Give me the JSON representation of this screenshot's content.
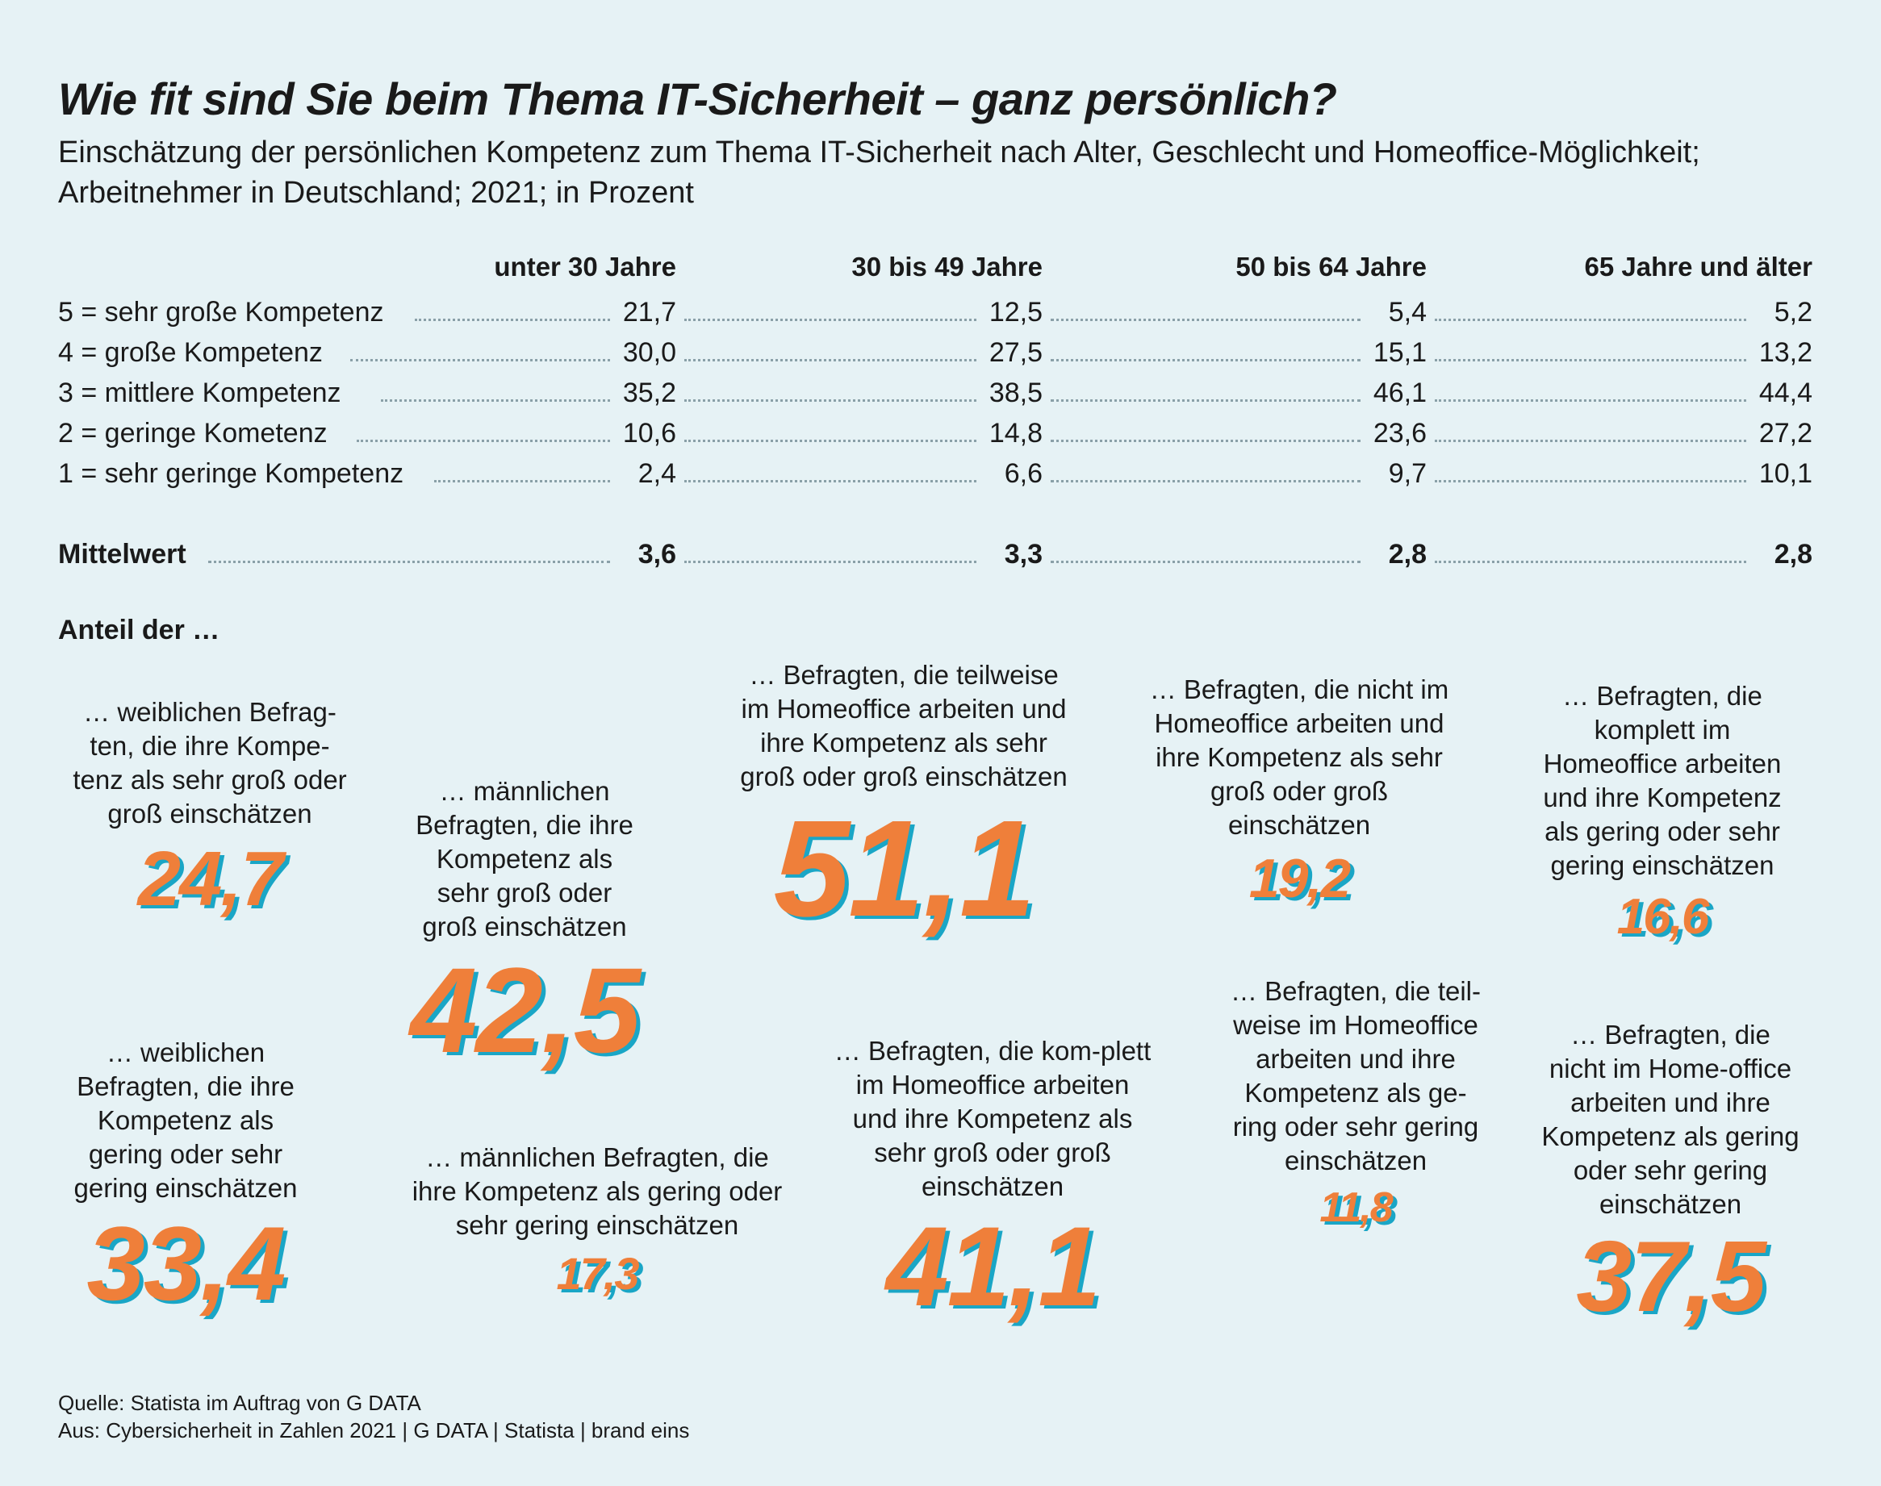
{
  "title": "Wie fit sind Sie beim Thema IT-Sicherheit – ganz persönlich?",
  "subtitle": "Einschätzung der persönlichen Kompetenz zum Thema IT-Sicherheit nach Alter, Geschlecht und Homeoffice-Möglichkeit; Arbeitnehmer in Deutschland; 2021; in Prozent",
  "chart_data": [
    {
      "type": "table",
      "columns": [
        "unter 30 Jahre",
        "30 bis 49 Jahre",
        "50 bis 64 Jahre",
        "65 Jahre und älter"
      ],
      "rows": [
        {
          "label": "5 = sehr große Kompetenz",
          "values": [
            "21,7",
            "12,5",
            "5,4",
            "5,2"
          ]
        },
        {
          "label": "4 = große Kompetenz",
          "values": [
            "30,0",
            "27,5",
            "15,1",
            "13,2"
          ]
        },
        {
          "label": "3 = mittlere Kompetenz",
          "values": [
            "35,2",
            "38,5",
            "46,1",
            "44,4"
          ]
        },
        {
          "label": "2 = geringe Kometenz",
          "values": [
            "10,6",
            "14,8",
            "23,6",
            "27,2"
          ]
        },
        {
          "label": "1 = sehr geringe Kompetenz",
          "values": [
            "2,4",
            "6,6",
            "9,7",
            "10,1"
          ]
        }
      ],
      "mean": {
        "label": "Mittelwert",
        "values": [
          "3,6",
          "3,3",
          "2,8",
          "2,8"
        ]
      }
    },
    {
      "type": "table",
      "title": "Anteil der …",
      "items": [
        {
          "desc": "… weiblichen Befrag-ten, die ihre Kompe-tenz als sehr groß oder groß einschätzen",
          "value": "24,7"
        },
        {
          "desc": "… männlichen Befragten, die ihre Kompetenz als sehr groß oder groß einschätzen",
          "value": "42,5"
        },
        {
          "desc": "… Befragten, die teilweise im Homeoffice arbeiten und ihre Kompetenz als sehr groß oder groß einschätzen",
          "value": "51,1"
        },
        {
          "desc": "… Befragten, die nicht im Homeoffice arbeiten und ihre Kompetenz als sehr groß oder groß einschätzen",
          "value": "19,2"
        },
        {
          "desc": "… Befragten, die komplett im Homeoffice arbeiten und ihre Kompetenz als gering oder sehr gering einschätzen",
          "value": "16,6"
        },
        {
          "desc": "… weiblichen Befragten, die ihre Kompetenz als gering oder sehr gering einschätzen",
          "value": "33,4"
        },
        {
          "desc": "… männlichen Befragten, die ihre Kompetenz als gering oder sehr gering einschätzen",
          "value": "17,3"
        },
        {
          "desc": "… Befragten, die kom-plett im Homeoffice arbeiten und ihre Kompetenz als sehr groß oder groß einschätzen",
          "value": "41,1"
        },
        {
          "desc": "… Befragten, die teil-weise im Homeoffice arbeiten und ihre Kompetenz als ge-ring oder sehr gering einschätzen",
          "value": "11,8"
        },
        {
          "desc": "… Befragten, die nicht im Home-office arbeiten und ihre Kompetenz als gering oder sehr gering einschätzen",
          "value": "37,5"
        }
      ]
    }
  ],
  "source": {
    "line1": "Quelle: Statista im Auftrag von G DATA",
    "line2": "Aus: Cybersicherheit in Zahlen 2021 | G DATA | Statista | brand eins"
  },
  "colors": {
    "background": "#e6f2f5",
    "accent": "#ef7f3a",
    "shadow": "#1aa6c6"
  }
}
